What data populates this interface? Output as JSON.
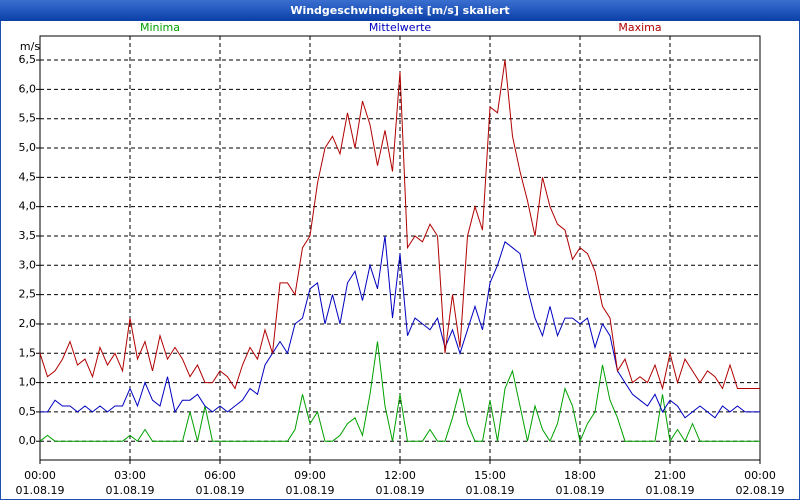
{
  "chart_data": {
    "type": "line",
    "title": "Windgeschwindigkeit [m/s] skaliert",
    "y_label": "m/s",
    "x": [
      0,
      0.25,
      0.5,
      0.75,
      1,
      1.25,
      1.5,
      1.75,
      2,
      2.25,
      2.5,
      2.75,
      3,
      3.25,
      3.5,
      3.75,
      4,
      4.25,
      4.5,
      4.75,
      5,
      5.25,
      5.5,
      5.75,
      6,
      6.25,
      6.5,
      6.75,
      7,
      7.25,
      7.5,
      7.75,
      8,
      8.25,
      8.5,
      8.75,
      9,
      9.25,
      9.5,
      9.75,
      10,
      10.25,
      10.5,
      10.75,
      11,
      11.25,
      11.5,
      11.75,
      12,
      12.25,
      12.5,
      12.75,
      13,
      13.25,
      13.5,
      13.75,
      14,
      14.25,
      14.5,
      14.75,
      15,
      15.25,
      15.5,
      15.75,
      16,
      16.25,
      16.5,
      16.75,
      17,
      17.25,
      17.5,
      17.75,
      18,
      18.25,
      18.5,
      18.75,
      19,
      19.25,
      19.5,
      19.75,
      20,
      20.25,
      20.5,
      20.75,
      21,
      21.25,
      21.5,
      21.75,
      22,
      22.25,
      22.5,
      22.75,
      23,
      23.25,
      23.5,
      23.75,
      24
    ],
    "series": [
      {
        "name": "Minima",
        "color": "#00a000",
        "values": [
          0,
          0.1,
          0,
          0,
          0,
          0,
          0,
          0,
          0,
          0,
          0,
          0,
          0.1,
          0,
          0.2,
          0,
          0,
          0,
          0,
          0,
          0.5,
          0,
          0.6,
          0,
          0,
          0,
          0,
          0,
          0,
          0,
          0,
          0,
          0,
          0,
          0.2,
          0.8,
          0.3,
          0.5,
          0,
          0,
          0.1,
          0.3,
          0.4,
          0.1,
          0.8,
          1.7,
          0.6,
          0,
          0.8,
          0,
          0,
          0,
          0.2,
          0,
          0,
          0.4,
          0.9,
          0.3,
          0,
          0,
          0.7,
          0,
          0.9,
          1.2,
          0.6,
          0,
          0.6,
          0.2,
          0,
          0.3,
          0.9,
          0.6,
          0,
          0.3,
          0.5,
          1.3,
          0.7,
          0.4,
          0,
          0,
          0,
          0,
          0,
          0.8,
          0,
          0.2,
          0,
          0.3,
          0,
          0,
          0,
          0,
          0,
          0,
          0,
          0,
          0
        ]
      },
      {
        "name": "Mittelwerte",
        "color": "#0000c0",
        "values": [
          0.5,
          0.5,
          0.7,
          0.6,
          0.6,
          0.5,
          0.6,
          0.5,
          0.6,
          0.5,
          0.6,
          0.6,
          0.9,
          0.6,
          1.0,
          0.7,
          0.6,
          1.1,
          0.5,
          0.7,
          0.7,
          0.8,
          0.6,
          0.5,
          0.6,
          0.5,
          0.6,
          0.7,
          0.9,
          0.8,
          1.3,
          1.5,
          1.7,
          1.5,
          2.0,
          2.1,
          2.6,
          2.7,
          2.0,
          2.5,
          2.0,
          2.7,
          2.9,
          2.4,
          3.0,
          2.6,
          3.5,
          2.1,
          3.2,
          1.8,
          2.1,
          2.0,
          1.9,
          2.1,
          1.6,
          1.9,
          1.5,
          1.9,
          2.3,
          1.9,
          2.7,
          3.0,
          3.4,
          3.3,
          3.2,
          2.6,
          2.1,
          1.8,
          2.3,
          1.8,
          2.1,
          2.1,
          2.0,
          2.1,
          1.6,
          2.0,
          1.8,
          1.2,
          1.0,
          0.8,
          0.7,
          0.6,
          0.8,
          0.5,
          0.7,
          0.6,
          0.4,
          0.5,
          0.6,
          0.5,
          0.4,
          0.6,
          0.5,
          0.6,
          0.5,
          0.5,
          0.5
        ]
      },
      {
        "name": "Maxima",
        "color": "#b00000",
        "values": [
          1.5,
          1.1,
          1.2,
          1.4,
          1.7,
          1.3,
          1.4,
          1.1,
          1.6,
          1.3,
          1.5,
          1.2,
          2.1,
          1.4,
          1.7,
          1.2,
          1.8,
          1.4,
          1.6,
          1.4,
          1.1,
          1.3,
          1.0,
          1.0,
          1.2,
          1.1,
          0.9,
          1.3,
          1.6,
          1.4,
          1.9,
          1.5,
          2.7,
          2.7,
          2.5,
          3.3,
          3.5,
          4.4,
          5.0,
          5.2,
          4.9,
          5.6,
          5.0,
          5.8,
          5.4,
          4.7,
          5.3,
          4.6,
          6.3,
          3.3,
          3.5,
          3.4,
          3.7,
          3.5,
          1.5,
          2.5,
          1.6,
          3.5,
          4.0,
          3.6,
          5.7,
          5.6,
          6.5,
          5.2,
          4.6,
          4.1,
          3.5,
          4.5,
          4.0,
          3.7,
          3.6,
          3.1,
          3.3,
          3.2,
          2.9,
          2.3,
          2.1,
          1.2,
          1.4,
          1.0,
          1.1,
          1.0,
          1.3,
          0.9,
          1.5,
          1.0,
          1.4,
          1.2,
          1.0,
          1.2,
          1.1,
          0.9,
          1.3,
          0.9,
          0.9,
          0.9,
          0.9
        ]
      }
    ],
    "xlim": [
      0,
      24
    ],
    "xticks": [
      {
        "value": 0,
        "label": "00:00\n01.08.19"
      },
      {
        "value": 3,
        "label": "03:00\n01.08.19"
      },
      {
        "value": 6,
        "label": "06:00\n01.08.19"
      },
      {
        "value": 9,
        "label": "09:00\n01.08.19"
      },
      {
        "value": 12,
        "label": "12:00\n01.08.19"
      },
      {
        "value": 15,
        "label": "15:00\n01.08.19"
      },
      {
        "value": 18,
        "label": "18:00\n01.08.19"
      },
      {
        "value": 21,
        "label": "21:00\n01.08.19"
      },
      {
        "value": 24,
        "label": "00:00\n02.08.19"
      }
    ],
    "ylim": [
      -0.32,
      6.91
    ],
    "yticks": [
      {
        "value": 0,
        "label": "0,0"
      },
      {
        "value": 0.5,
        "label": "0,5"
      },
      {
        "value": 1,
        "label": "1,0"
      },
      {
        "value": 1.5,
        "label": "1,5"
      },
      {
        "value": 2,
        "label": "2,0"
      },
      {
        "value": 2.5,
        "label": "2,5"
      },
      {
        "value": 3,
        "label": "3,0"
      },
      {
        "value": 3.5,
        "label": "3,5"
      },
      {
        "value": 4,
        "label": "4,0"
      },
      {
        "value": 4.5,
        "label": "4,5"
      },
      {
        "value": 5,
        "label": "5,0"
      },
      {
        "value": 5.5,
        "label": "5,5"
      },
      {
        "value": 6,
        "label": "6,0"
      },
      {
        "value": 6.5,
        "label": "6,5"
      }
    ],
    "grid": true
  }
}
